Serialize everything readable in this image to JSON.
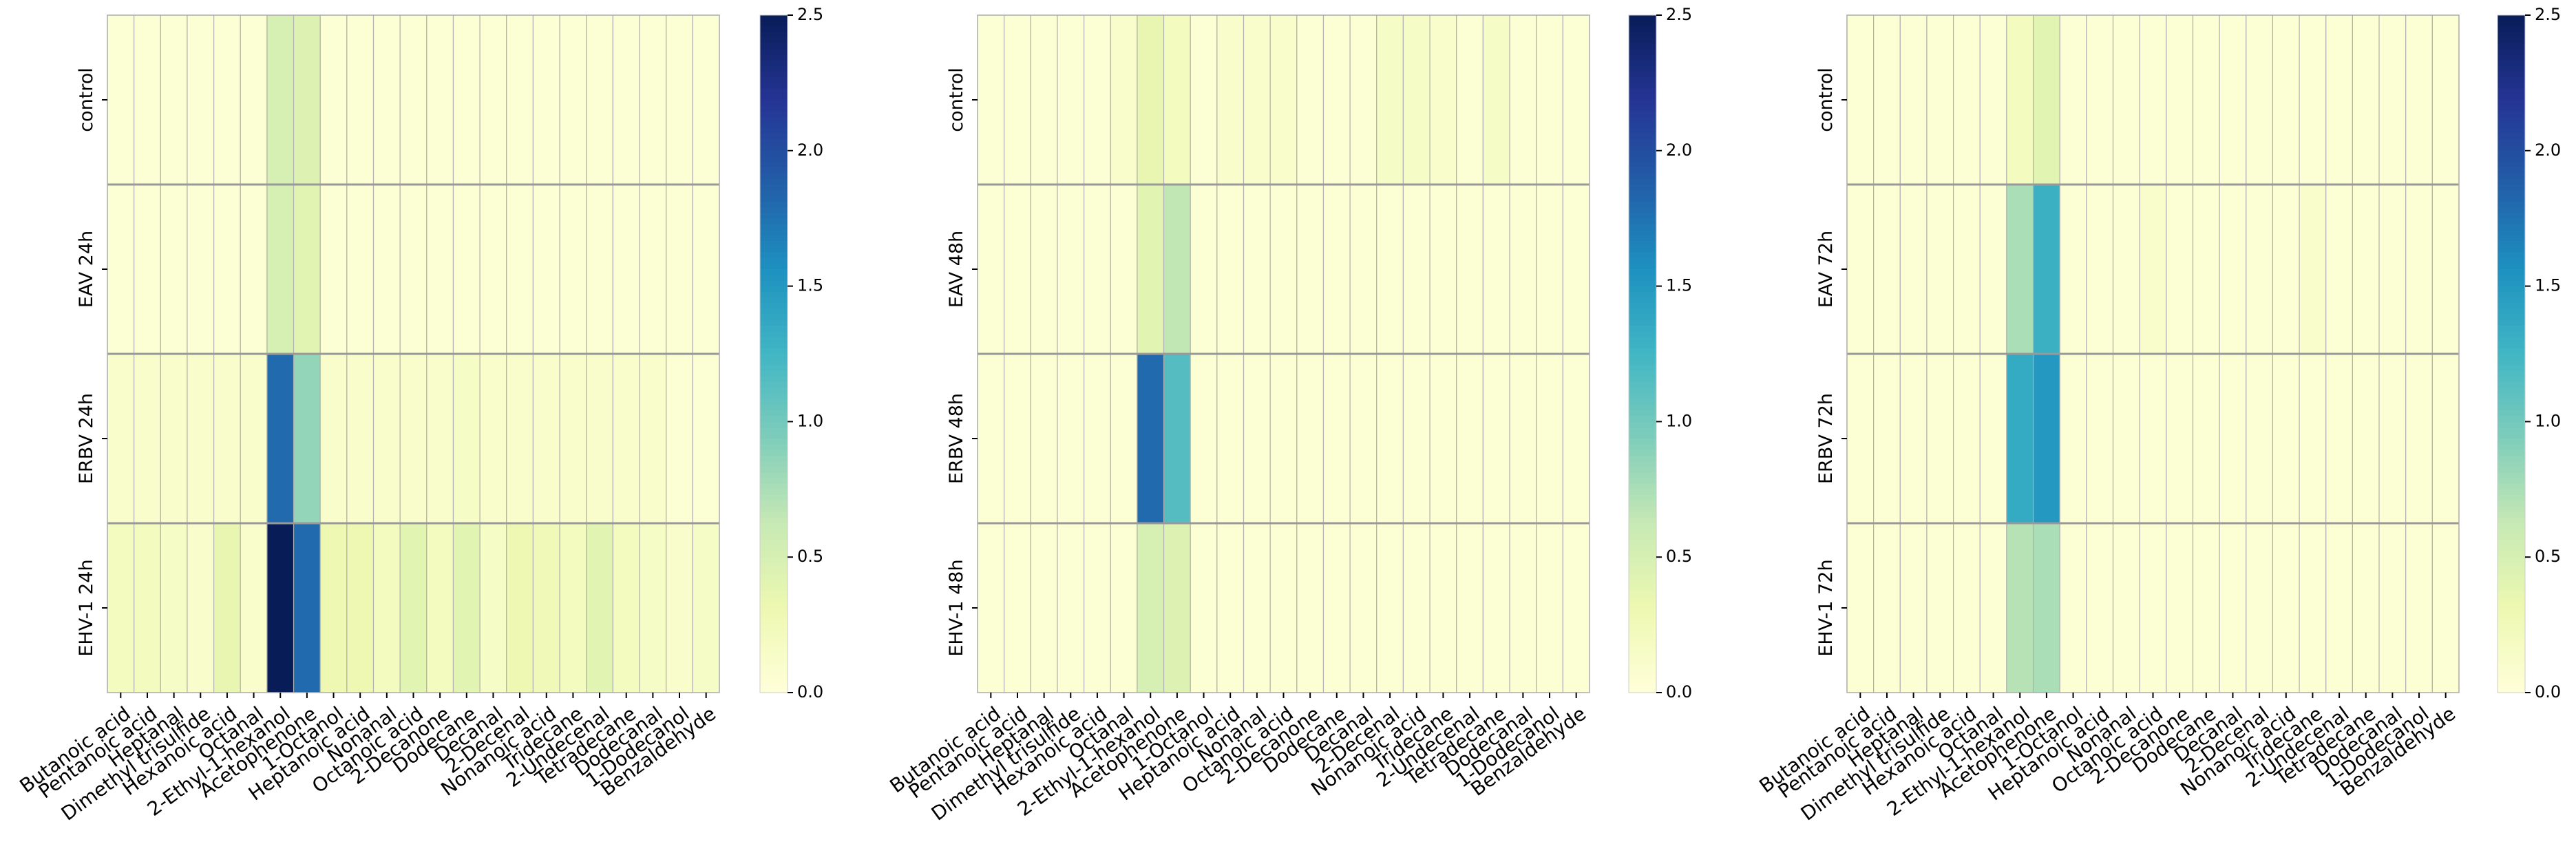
{
  "chart_data": [
    {
      "type": "heatmap",
      "title": "",
      "rows": [
        "control",
        "EAV 24h",
        "ERBV 24h",
        "EHV-1 24h"
      ],
      "columns": [
        "Butanoic acid",
        "Pentanoic acid",
        "Heptanal",
        "Dimethyl trisulfide",
        "Hexanoic acid",
        "Octanal",
        "2-Ethyl-1-hexanol",
        "Acetophenone",
        "1-Octanol",
        "Heptanoic acid",
        "Nonanal",
        "Octanoic acid",
        "2-Decanone",
        "Dodecane",
        "Decanal",
        "2-Decenal",
        "Nonanoic acid",
        "Tridecane",
        "2-Undecenal",
        "Tetradecane",
        "Dodecanal",
        "1-Dodecanol",
        "Benzaldehyde"
      ],
      "values": [
        [
          0.05,
          0.05,
          0.05,
          0.05,
          0.05,
          0.05,
          0.5,
          0.45,
          0.05,
          0.05,
          0.05,
          0.05,
          0.05,
          0.05,
          0.05,
          0.05,
          0.05,
          0.05,
          0.05,
          0.05,
          0.05,
          0.05,
          0.05
        ],
        [
          0.05,
          0.05,
          0.05,
          0.05,
          0.05,
          0.05,
          0.5,
          0.4,
          0.05,
          0.05,
          0.05,
          0.05,
          0.05,
          0.05,
          0.05,
          0.05,
          0.05,
          0.05,
          0.05,
          0.05,
          0.05,
          0.05,
          0.05
        ],
        [
          0.1,
          0.1,
          0.1,
          0.1,
          0.1,
          0.1,
          1.8,
          0.85,
          0.1,
          0.1,
          0.1,
          0.1,
          0.1,
          0.15,
          0.1,
          0.1,
          0.1,
          0.1,
          0.1,
          0.1,
          0.1,
          0.05,
          0.05
        ],
        [
          0.2,
          0.2,
          0.15,
          0.1,
          0.35,
          0.1,
          2.5,
          1.8,
          0.3,
          0.3,
          0.2,
          0.4,
          0.2,
          0.4,
          0.15,
          0.3,
          0.25,
          0.2,
          0.4,
          0.2,
          0.15,
          0.1,
          0.15
        ]
      ],
      "colorbar": {
        "min": 0.0,
        "max": 2.5,
        "ticks": [
          "0.0",
          "0.5",
          "1.0",
          "1.5",
          "2.0",
          "2.5"
        ]
      },
      "colormap": "YlGnBu"
    },
    {
      "type": "heatmap",
      "title": "",
      "rows": [
        "control",
        "EAV 48h",
        "ERBV 48h",
        "EHV-1 48h"
      ],
      "columns": [
        "Butanoic acid",
        "Pentanoic acid",
        "Heptanal",
        "Dimethyl trisulfide",
        "Hexanoic acid",
        "Octanal",
        "2-Ethyl-1-hexanol",
        "Acetophenone",
        "1-Octanol",
        "Heptanoic acid",
        "Nonanal",
        "Octanoic acid",
        "2-Decanone",
        "Dodecane",
        "Decanal",
        "2-Decenal",
        "Nonanoic acid",
        "Tridecane",
        "2-Undecenal",
        "Tetradecane",
        "Dodecanal",
        "1-Dodecanol",
        "Benzaldehyde"
      ],
      "values": [
        [
          0.05,
          0.05,
          0.05,
          0.05,
          0.05,
          0.1,
          0.35,
          0.2,
          0.05,
          0.1,
          0.1,
          0.1,
          0.05,
          0.05,
          0.05,
          0.15,
          0.15,
          0.1,
          0.05,
          0.15,
          0.05,
          0.05,
          0.05
        ],
        [
          0.05,
          0.05,
          0.05,
          0.05,
          0.05,
          0.05,
          0.4,
          0.65,
          0.05,
          0.05,
          0.05,
          0.05,
          0.05,
          0.05,
          0.05,
          0.05,
          0.05,
          0.05,
          0.05,
          0.05,
          0.05,
          0.05,
          0.05
        ],
        [
          0.05,
          0.05,
          0.05,
          0.05,
          0.05,
          0.05,
          1.8,
          1.15,
          0.05,
          0.05,
          0.05,
          0.05,
          0.05,
          0.05,
          0.05,
          0.05,
          0.05,
          0.05,
          0.05,
          0.05,
          0.05,
          0.05,
          0.05
        ],
        [
          0.05,
          0.05,
          0.05,
          0.05,
          0.05,
          0.05,
          0.5,
          0.45,
          0.05,
          0.05,
          0.05,
          0.05,
          0.05,
          0.05,
          0.05,
          0.05,
          0.05,
          0.05,
          0.05,
          0.05,
          0.05,
          0.05,
          0.05
        ]
      ],
      "colorbar": {
        "min": 0.0,
        "max": 2.5,
        "ticks": [
          "0.0",
          "0.5",
          "1.0",
          "1.5",
          "2.0",
          "2.5"
        ]
      },
      "colormap": "YlGnBu"
    },
    {
      "type": "heatmap",
      "title": "",
      "rows": [
        "control",
        "EAV 72h",
        "ERBV 72h",
        "EHV-1 72h"
      ],
      "columns": [
        "Butanoic acid",
        "Pentanoic acid",
        "Heptanal",
        "Dimethyl trisulfide",
        "Hexanoic acid",
        "Octanal",
        "2-Ethyl-1-hexanol",
        "Acetophenone",
        "1-Octanol",
        "Heptanoic acid",
        "Nonanal",
        "Octanoic acid",
        "2-Decanone",
        "Dodecane",
        "Decanal",
        "2-Decenal",
        "Nonanoic acid",
        "Tridecane",
        "2-Undecenal",
        "Tetradecane",
        "Dodecanal",
        "1-Dodecanol",
        "Benzaldehyde"
      ],
      "values": [
        [
          0.05,
          0.05,
          0.05,
          0.05,
          0.05,
          0.05,
          0.2,
          0.4,
          0.05,
          0.05,
          0.05,
          0.05,
          0.05,
          0.05,
          0.05,
          0.05,
          0.05,
          0.05,
          0.05,
          0.05,
          0.05,
          0.05,
          0.05
        ],
        [
          0.05,
          0.05,
          0.05,
          0.05,
          0.05,
          0.05,
          0.75,
          1.3,
          0.05,
          0.05,
          0.05,
          0.1,
          0.05,
          0.05,
          0.05,
          0.05,
          0.05,
          0.1,
          0.05,
          0.05,
          0.05,
          0.05,
          0.05
        ],
        [
          0.05,
          0.05,
          0.05,
          0.05,
          0.05,
          0.05,
          1.35,
          1.5,
          0.05,
          0.05,
          0.05,
          0.05,
          0.05,
          0.05,
          0.05,
          0.05,
          0.05,
          0.05,
          0.05,
          0.05,
          0.05,
          0.05,
          0.05
        ],
        [
          0.05,
          0.05,
          0.05,
          0.05,
          0.05,
          0.05,
          0.7,
          0.75,
          0.05,
          0.05,
          0.05,
          0.05,
          0.05,
          0.05,
          0.05,
          0.05,
          0.05,
          0.05,
          0.05,
          0.05,
          0.05,
          0.05,
          0.05
        ]
      ],
      "colorbar": {
        "min": 0.0,
        "max": 2.5,
        "ticks": [
          "0.0",
          "0.5",
          "1.0",
          "1.5",
          "2.0",
          "2.5"
        ]
      },
      "colormap": "YlGnBu"
    }
  ]
}
